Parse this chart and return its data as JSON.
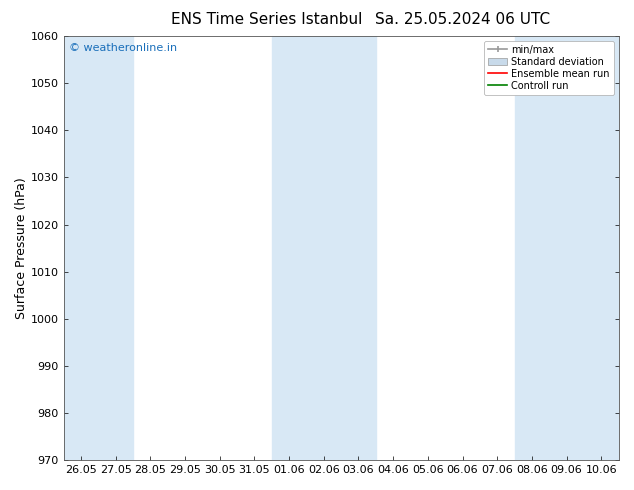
{
  "title": "ENS Time Series Istanbul",
  "subtitle": "Sa. 25.05.2024 06 UTC",
  "ylabel": "Surface Pressure (hPa)",
  "ylim": [
    970,
    1060
  ],
  "yticks": [
    970,
    980,
    990,
    1000,
    1010,
    1020,
    1030,
    1040,
    1050,
    1060
  ],
  "x_labels": [
    "26.05",
    "27.05",
    "28.05",
    "29.05",
    "30.05",
    "31.05",
    "01.06",
    "02.06",
    "03.06",
    "04.06",
    "05.06",
    "06.06",
    "07.06",
    "08.06",
    "09.06",
    "10.06"
  ],
  "shaded_band_color": "#d8e8f5",
  "plot_bg_color": "#ffffff",
  "background_color": "#ffffff",
  "watermark": "© weatheronline.in",
  "watermark_color": "#1a6fba",
  "legend_entries": [
    "min/max",
    "Standard deviation",
    "Ensemble mean run",
    "Controll run"
  ],
  "legend_color_minmax": "#999999",
  "legend_color_std": "#c8daea",
  "legend_color_ens": "#ff0000",
  "legend_color_ctrl": "#008000",
  "title_fontsize": 11,
  "axis_fontsize": 8,
  "ylabel_fontsize": 9,
  "shaded_columns": [
    0,
    1,
    6,
    7,
    8,
    13,
    14,
    15
  ]
}
